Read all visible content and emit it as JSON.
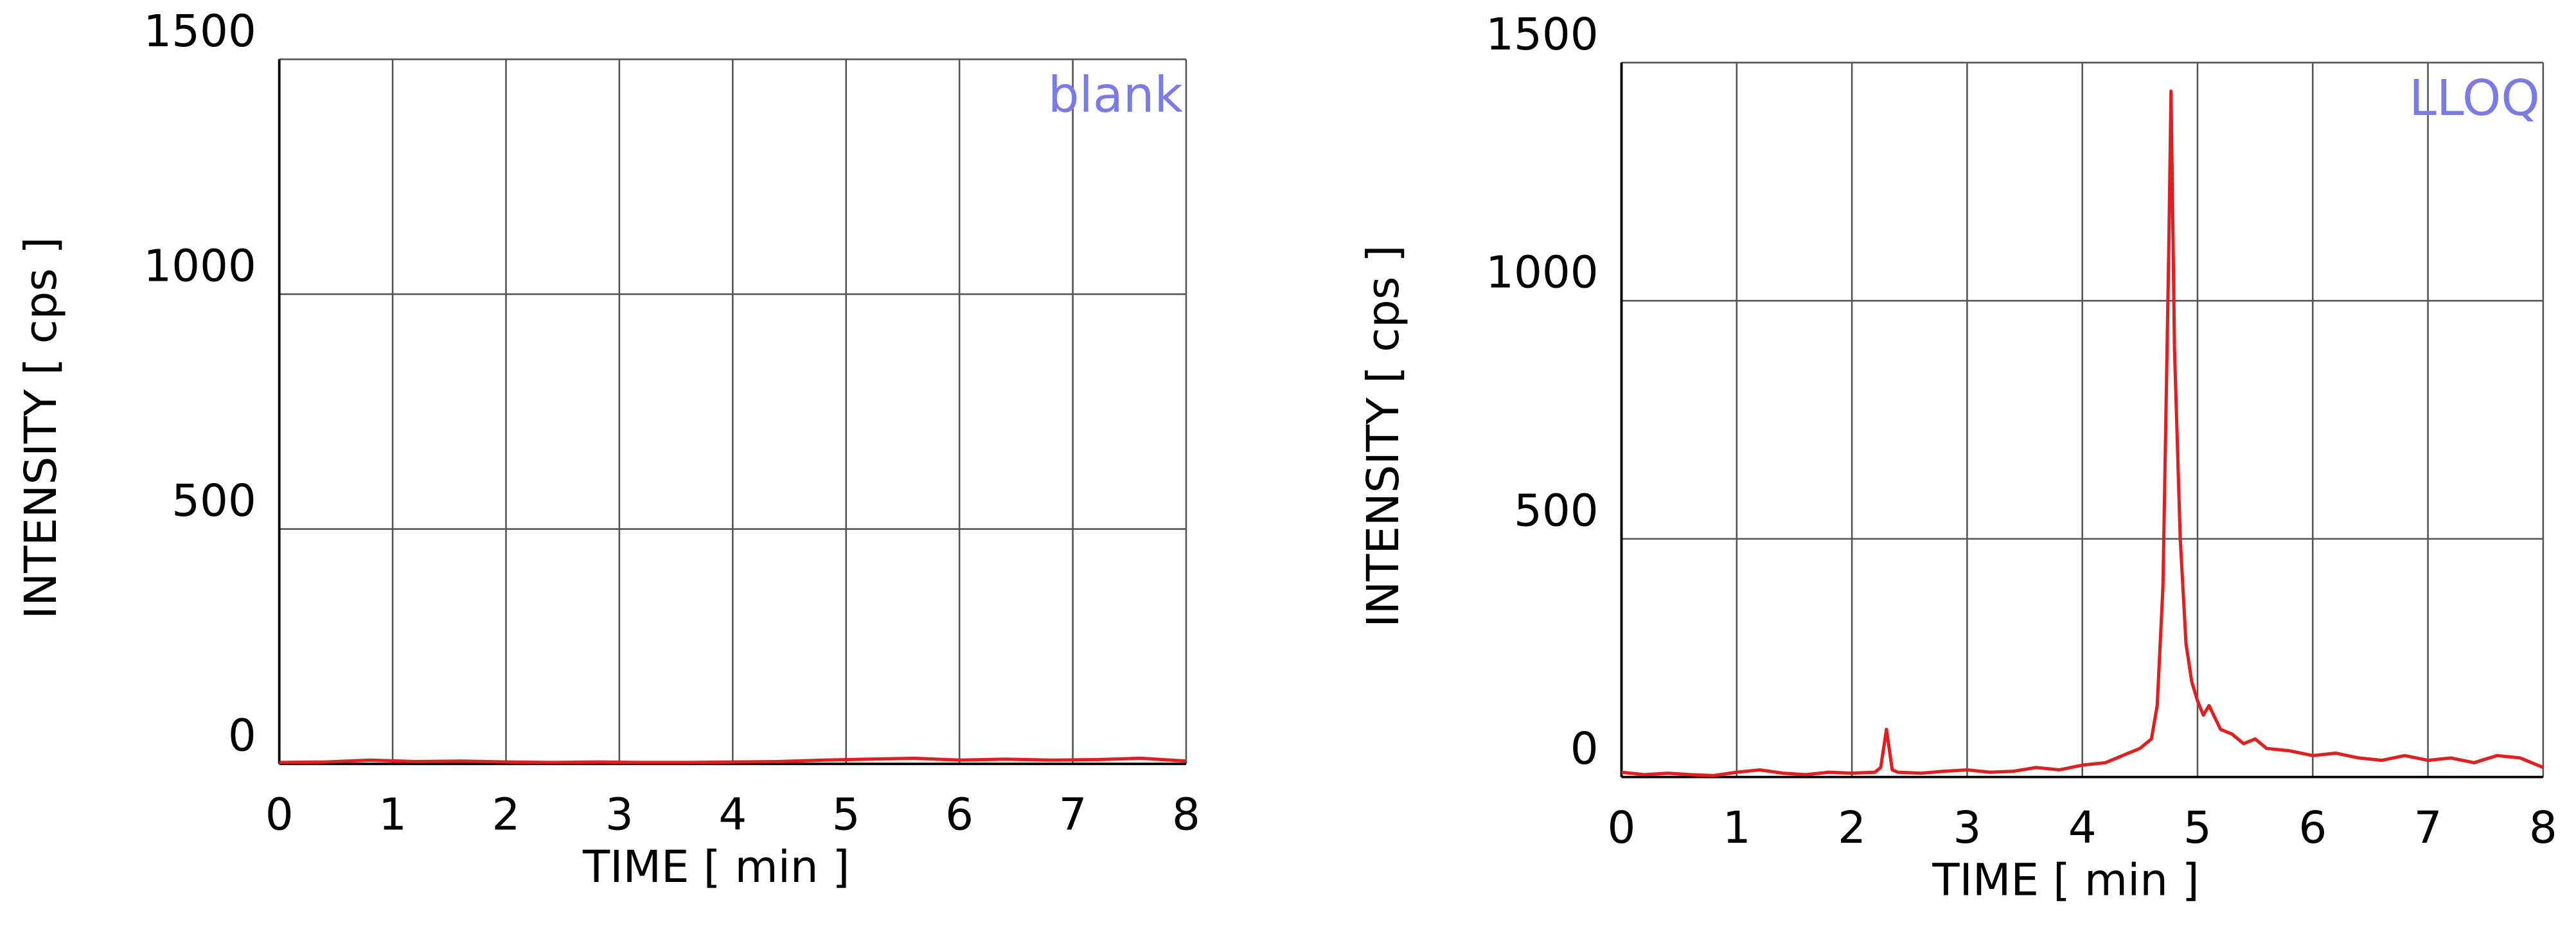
{
  "chart_data": [
    {
      "type": "line",
      "annotation": "blank",
      "xlabel": "TIME [ min ]",
      "ylabel": "INTENSITY [ cps ]",
      "x": [
        0,
        0.4,
        0.8,
        1.2,
        1.6,
        2.0,
        2.4,
        2.8,
        3.2,
        3.6,
        4.0,
        4.4,
        4.8,
        5.2,
        5.6,
        6.0,
        6.4,
        6.8,
        7.2,
        7.6,
        8.0
      ],
      "series": [
        {
          "name": "blank",
          "color": "#e02020",
          "values": [
            3,
            4,
            8,
            5,
            6,
            4,
            3,
            4,
            3,
            3,
            4,
            5,
            8,
            10,
            12,
            8,
            10,
            8,
            9,
            12,
            6
          ]
        }
      ],
      "xlim": [
        0,
        8
      ],
      "xticks": [
        0,
        1,
        2,
        3,
        4,
        5,
        6,
        7,
        8
      ],
      "ylim": [
        0,
        1500
      ],
      "yticks": [
        0,
        500,
        1000,
        1500
      ],
      "grid": true
    },
    {
      "type": "line",
      "annotation": "LLOQ",
      "xlabel": "TIME [ min ]",
      "ylabel": "INTENSITY [ cps ]",
      "x": [
        0,
        0.2,
        0.4,
        0.6,
        0.8,
        1.0,
        1.2,
        1.4,
        1.6,
        1.8,
        2.0,
        2.2,
        2.25,
        2.3,
        2.35,
        2.4,
        2.6,
        2.8,
        3.0,
        3.2,
        3.4,
        3.6,
        3.8,
        4.0,
        4.2,
        4.4,
        4.5,
        4.6,
        4.65,
        4.7,
        4.75,
        4.77,
        4.8,
        4.85,
        4.9,
        4.95,
        5.0,
        5.05,
        5.1,
        5.2,
        5.3,
        5.4,
        5.5,
        5.6,
        5.8,
        6.0,
        6.2,
        6.4,
        6.6,
        6.8,
        7.0,
        7.2,
        7.4,
        7.6,
        7.8,
        8.0
      ],
      "series": [
        {
          "name": "LLOQ",
          "color": "#e02020",
          "values": [
            10,
            5,
            8,
            5,
            3,
            10,
            15,
            8,
            5,
            10,
            8,
            10,
            20,
            100,
            15,
            10,
            8,
            12,
            15,
            10,
            12,
            20,
            15,
            25,
            30,
            50,
            60,
            80,
            150,
            400,
            1100,
            1440,
            900,
            500,
            280,
            200,
            160,
            130,
            150,
            100,
            90,
            70,
            80,
            60,
            55,
            45,
            50,
            40,
            35,
            45,
            35,
            40,
            30,
            45,
            40,
            20
          ]
        }
      ],
      "xlim": [
        0,
        8
      ],
      "xticks": [
        0,
        1,
        2,
        3,
        4,
        5,
        6,
        7,
        8
      ],
      "ylim": [
        0,
        1500
      ],
      "yticks": [
        0,
        500,
        1000,
        1500
      ],
      "grid": true
    }
  ]
}
